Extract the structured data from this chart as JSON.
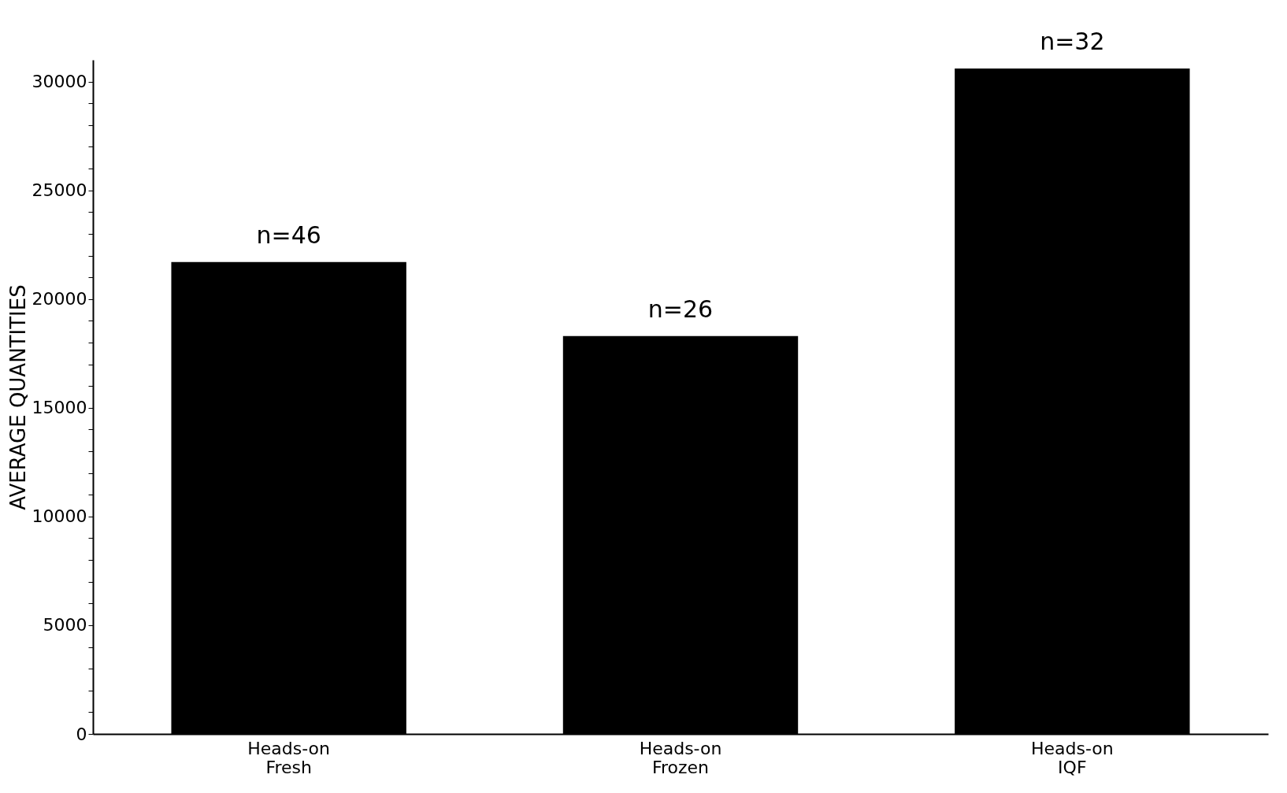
{
  "chart_data": {
    "type": "bar",
    "ylabel": "AVERAGE QUANTITIES",
    "categories": [
      "Heads-on\nFresh",
      "Heads-on\nFrozen",
      "Heads-on\nIQF"
    ],
    "values": [
      21700,
      18300,
      30600
    ],
    "color": "#000000",
    "ylim": [
      0,
      31000
    ],
    "yticks": [
      0,
      {
        "value": 1000,
        "label": null
      },
      {
        "value": 2000,
        "label": null
      },
      {
        "value": 3000,
        "label": null
      },
      {
        "value": 4000,
        "label": null
      },
      5000,
      {
        "value": 6000,
        "label": null
      },
      {
        "value": 7000,
        "label": null
      },
      {
        "value": 8000,
        "label": null
      },
      {
        "value": 9000,
        "label": null
      },
      10000,
      {
        "value": 11000,
        "label": null
      },
      {
        "value": 12000,
        "label": null
      },
      {
        "value": 13000,
        "label": null
      },
      {
        "value": 14000,
        "label": null
      },
      15000,
      {
        "value": 16000,
        "label": null
      },
      {
        "value": 17000,
        "label": null
      },
      {
        "value": 18000,
        "label": null
      },
      {
        "value": 19000,
        "label": null
      },
      20000,
      {
        "value": 21000,
        "label": null
      },
      {
        "value": 22000,
        "label": null
      },
      {
        "value": 23000,
        "label": null
      },
      {
        "value": 24000,
        "label": null
      },
      25000,
      {
        "value": 26000,
        "label": null
      },
      {
        "value": 27000,
        "label": null
      },
      {
        "value": 28000,
        "label": null
      },
      {
        "value": 29000,
        "label": null
      },
      30000
    ],
    "grid": false,
    "annotations": [
      {
        "text": "n=46",
        "x": "Heads-on\nFresh",
        "y": 21700
      },
      {
        "text": "n=26",
        "x": "Heads-on\nFrozen",
        "y": 18300
      },
      {
        "text": "n=32",
        "x": "Heads-on\nIQF",
        "y": 30600
      }
    ]
  }
}
